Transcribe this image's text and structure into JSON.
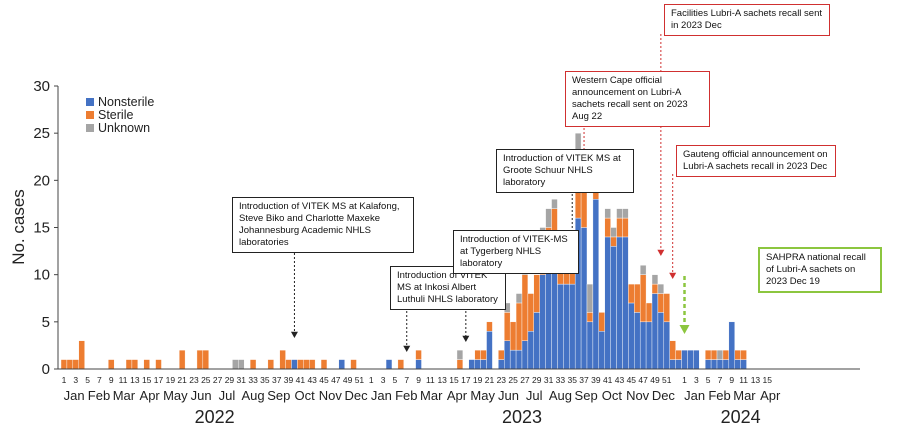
{
  "chart_data": {
    "type": "bar",
    "stacked": true,
    "ylabel": "No. cases",
    "ylim": [
      0,
      30
    ],
    "yticks": [
      0,
      5,
      10,
      15,
      20,
      25,
      30
    ],
    "grid": false,
    "legend_position": "top-left",
    "series": [
      {
        "name": "Nonsterile",
        "color": "#4472c4"
      },
      {
        "name": "Sterile",
        "color": "#ed7d31"
      },
      {
        "name": "Unknown",
        "color": "#a5a5a5"
      }
    ],
    "week_tick_labels": [
      "1",
      "3",
      "5",
      "7",
      "9",
      "11",
      "13",
      "15",
      "17",
      "19",
      "21",
      "23",
      "25",
      "27",
      "29",
      "31",
      "33",
      "35",
      "37",
      "39",
      "41",
      "43",
      "45",
      "47",
      "49",
      "51",
      "1",
      "3",
      "5",
      "7",
      "9",
      "11",
      "13",
      "15",
      "17",
      "19",
      "21",
      "23",
      "25",
      "27",
      "29",
      "31",
      "33",
      "35",
      "37",
      "39",
      "41",
      "43",
      "45",
      "47",
      "49",
      "51",
      "1",
      "3",
      "5",
      "7",
      "9",
      "11",
      "13",
      "15"
    ],
    "month_labels": [
      "Jan",
      "Feb",
      "Mar",
      "Apr",
      "May",
      "Jun",
      "Jul",
      "Aug",
      "Sep",
      "Oct",
      "Nov",
      "Dec",
      "Jan",
      "Feb",
      "Mar",
      "Apr",
      "May",
      "Jun",
      "Jul",
      "Aug",
      "Sep",
      "Oct",
      "Nov",
      "Dec",
      "Jan",
      "Feb",
      "Mar",
      "Apr"
    ],
    "year_labels": [
      "2022",
      "2023",
      "2024"
    ],
    "weekly": [
      {
        "week": "2022-W01",
        "nonsterile": 0,
        "sterile": 1,
        "unknown": 0
      },
      {
        "week": "2022-W02",
        "nonsterile": 0,
        "sterile": 1,
        "unknown": 0
      },
      {
        "week": "2022-W03",
        "nonsterile": 0,
        "sterile": 1,
        "unknown": 0
      },
      {
        "week": "2022-W04",
        "nonsterile": 0,
        "sterile": 3,
        "unknown": 0
      },
      {
        "week": "2022-W09",
        "nonsterile": 0,
        "sterile": 1,
        "unknown": 0
      },
      {
        "week": "2022-W12",
        "nonsterile": 0,
        "sterile": 1,
        "unknown": 0
      },
      {
        "week": "2022-W13",
        "nonsterile": 0,
        "sterile": 1,
        "unknown": 0
      },
      {
        "week": "2022-W15",
        "nonsterile": 0,
        "sterile": 1,
        "unknown": 0
      },
      {
        "week": "2022-W17",
        "nonsterile": 0,
        "sterile": 1,
        "unknown": 0
      },
      {
        "week": "2022-W21",
        "nonsterile": 0,
        "sterile": 2,
        "unknown": 0
      },
      {
        "week": "2022-W24",
        "nonsterile": 0,
        "sterile": 2,
        "unknown": 0
      },
      {
        "week": "2022-W25",
        "nonsterile": 0,
        "sterile": 2,
        "unknown": 0
      },
      {
        "week": "2022-W30",
        "nonsterile": 0,
        "sterile": 0,
        "unknown": 1
      },
      {
        "week": "2022-W31",
        "nonsterile": 0,
        "sterile": 0,
        "unknown": 1
      },
      {
        "week": "2022-W33",
        "nonsterile": 0,
        "sterile": 1,
        "unknown": 0
      },
      {
        "week": "2022-W36",
        "nonsterile": 0,
        "sterile": 1,
        "unknown": 0
      },
      {
        "week": "2022-W38",
        "nonsterile": 0,
        "sterile": 2,
        "unknown": 0
      },
      {
        "week": "2022-W39",
        "nonsterile": 0,
        "sterile": 1,
        "unknown": 0
      },
      {
        "week": "2022-W40",
        "nonsterile": 1,
        "sterile": 0,
        "unknown": 0
      },
      {
        "week": "2022-W41",
        "nonsterile": 0,
        "sterile": 1,
        "unknown": 0
      },
      {
        "week": "2022-W42",
        "nonsterile": 0,
        "sterile": 1,
        "unknown": 0
      },
      {
        "week": "2022-W43",
        "nonsterile": 0,
        "sterile": 1,
        "unknown": 0
      },
      {
        "week": "2022-W45",
        "nonsterile": 0,
        "sterile": 1,
        "unknown": 0
      },
      {
        "week": "2022-W48",
        "nonsterile": 1,
        "sterile": 0,
        "unknown": 0
      },
      {
        "week": "2022-W50",
        "nonsterile": 0,
        "sterile": 1,
        "unknown": 0
      },
      {
        "week": "2023-W04",
        "nonsterile": 1,
        "sterile": 0,
        "unknown": 0
      },
      {
        "week": "2023-W06",
        "nonsterile": 0,
        "sterile": 1,
        "unknown": 0
      },
      {
        "week": "2023-W09",
        "nonsterile": 1,
        "sterile": 1,
        "unknown": 0
      },
      {
        "week": "2023-W16",
        "nonsterile": 0,
        "sterile": 1,
        "unknown": 1
      },
      {
        "week": "2023-W18",
        "nonsterile": 1,
        "sterile": 0,
        "unknown": 0
      },
      {
        "week": "2023-W19",
        "nonsterile": 1,
        "sterile": 1,
        "unknown": 0
      },
      {
        "week": "2023-W20",
        "nonsterile": 1,
        "sterile": 1,
        "unknown": 0
      },
      {
        "week": "2023-W21",
        "nonsterile": 4,
        "sterile": 1,
        "unknown": 0
      },
      {
        "week": "2023-W23",
        "nonsterile": 1,
        "sterile": 1,
        "unknown": 0
      },
      {
        "week": "2023-W24",
        "nonsterile": 3,
        "sterile": 3,
        "unknown": 1
      },
      {
        "week": "2023-W25",
        "nonsterile": 2,
        "sterile": 3,
        "unknown": 0
      },
      {
        "week": "2023-W26",
        "nonsterile": 2,
        "sterile": 5,
        "unknown": 1
      },
      {
        "week": "2023-W27",
        "nonsterile": 3,
        "sterile": 7,
        "unknown": 1
      },
      {
        "week": "2023-W28",
        "nonsterile": 4,
        "sterile": 4,
        "unknown": 0
      },
      {
        "week": "2023-W29",
        "nonsterile": 6,
        "sterile": 4,
        "unknown": 0
      },
      {
        "week": "2023-W30",
        "nonsterile": 10,
        "sterile": 4,
        "unknown": 1
      },
      {
        "week": "2023-W31",
        "nonsterile": 13,
        "sterile": 2,
        "unknown": 2
      },
      {
        "week": "2023-W32",
        "nonsterile": 14,
        "sterile": 3,
        "unknown": 1
      },
      {
        "week": "2023-W33",
        "nonsterile": 9,
        "sterile": 4,
        "unknown": 0
      },
      {
        "week": "2023-W34",
        "nonsterile": 9,
        "sterile": 4,
        "unknown": 1
      },
      {
        "week": "2023-W35",
        "nonsterile": 9,
        "sterile": 3,
        "unknown": 1
      },
      {
        "week": "2023-W36",
        "nonsterile": 16,
        "sterile": 7,
        "unknown": 2
      },
      {
        "week": "2023-W37",
        "nonsterile": 15,
        "sterile": 5,
        "unknown": 0
      },
      {
        "week": "2023-W38",
        "nonsterile": 5,
        "sterile": 1,
        "unknown": 3
      },
      {
        "week": "2023-W39",
        "nonsterile": 18,
        "sterile": 4,
        "unknown": 0
      },
      {
        "week": "2023-W40",
        "nonsterile": 4,
        "sterile": 2,
        "unknown": 0
      },
      {
        "week": "2023-W41",
        "nonsterile": 14,
        "sterile": 2,
        "unknown": 1
      },
      {
        "week": "2023-W42",
        "nonsterile": 13,
        "sterile": 1,
        "unknown": 1
      },
      {
        "week": "2023-W43",
        "nonsterile": 14,
        "sterile": 2,
        "unknown": 1
      },
      {
        "week": "2023-W44",
        "nonsterile": 14,
        "sterile": 2,
        "unknown": 1
      },
      {
        "week": "2023-W45",
        "nonsterile": 7,
        "sterile": 2,
        "unknown": 0
      },
      {
        "week": "2023-W46",
        "nonsterile": 6,
        "sterile": 3,
        "unknown": 0
      },
      {
        "week": "2023-W47",
        "nonsterile": 5,
        "sterile": 5,
        "unknown": 1
      },
      {
        "week": "2023-W48",
        "nonsterile": 5,
        "sterile": 2,
        "unknown": 0
      },
      {
        "week": "2023-W49",
        "nonsterile": 8,
        "sterile": 1,
        "unknown": 1
      },
      {
        "week": "2023-W50",
        "nonsterile": 6,
        "sterile": 2,
        "unknown": 1
      },
      {
        "week": "2023-W51",
        "nonsterile": 5,
        "sterile": 3,
        "unknown": 0
      },
      {
        "week": "2023-W52",
        "nonsterile": 1,
        "sterile": 2,
        "unknown": 0
      },
      {
        "week": "2023-W53",
        "nonsterile": 1,
        "sterile": 1,
        "unknown": 0
      },
      {
        "week": "2024-W01",
        "nonsterile": 2,
        "sterile": 0,
        "unknown": 0
      },
      {
        "week": "2024-W02",
        "nonsterile": 2,
        "sterile": 0,
        "unknown": 0
      },
      {
        "week": "2024-W03",
        "nonsterile": 2,
        "sterile": 0,
        "unknown": 0
      },
      {
        "week": "2024-W05",
        "nonsterile": 1,
        "sterile": 1,
        "unknown": 0
      },
      {
        "week": "2024-W06",
        "nonsterile": 1,
        "sterile": 1,
        "unknown": 0
      },
      {
        "week": "2024-W07",
        "nonsterile": 1,
        "sterile": 0,
        "unknown": 1
      },
      {
        "week": "2024-W08",
        "nonsterile": 1,
        "sterile": 1,
        "unknown": 0
      },
      {
        "week": "2024-W09",
        "nonsterile": 5,
        "sterile": 0,
        "unknown": 0
      },
      {
        "week": "2024-W10",
        "nonsterile": 1,
        "sterile": 1,
        "unknown": 0
      },
      {
        "week": "2024-W11",
        "nonsterile": 1,
        "sterile": 1,
        "unknown": 0
      }
    ],
    "annotations": [
      {
        "text": "Introduction of VITEK MS at Kalafong, Steve Biko and Charlotte Maxeke Johannesburg Academic NHLS laboratories",
        "week": "2022-W40",
        "style": "black"
      },
      {
        "text": "Introduction of VITEK MS at Inkosi Albert Luthuli NHLS laboratory",
        "week": "2023-W07",
        "style": "black"
      },
      {
        "text": "Introduction of VITEK-MS at Tygerberg NHLS laboratory",
        "week": "2023-W17",
        "style": "black"
      },
      {
        "text": "Introduction of VITEK MS at Groote Schuur NHLS laboratory",
        "week": "2023-W35",
        "style": "black"
      },
      {
        "text": "Western Cape official announcement on Lubri-A sachets recall sent on 2023 Aug 22",
        "week": "2023-W37",
        "style": "red"
      },
      {
        "text": "Facilities Lubri-A sachets recall sent in 2023 Dec",
        "week": "2023-W50",
        "style": "red"
      },
      {
        "text": "Gauteng official announcement on Lubri-A sachets recall in 2023 Dec",
        "week": "2023-W52",
        "style": "red"
      },
      {
        "text": "SAHPRA national recall of Lubri-A sachets on 2023 Dec 19",
        "week": "2024-W01",
        "style": "green"
      }
    ]
  }
}
